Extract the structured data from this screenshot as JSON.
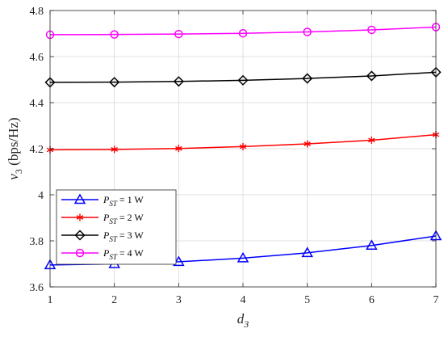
{
  "chart_data": {
    "type": "line",
    "title": "",
    "xlabel": {
      "main": "d",
      "sub": "3"
    },
    "ylabel": {
      "main": "v",
      "sub": "3",
      "rest": " (bps/Hz)"
    },
    "x": [
      1,
      2,
      3,
      4,
      5,
      6,
      7
    ],
    "xlim": [
      1,
      7
    ],
    "ylim": [
      3.6,
      4.8
    ],
    "xticks": [
      "1",
      "2",
      "3",
      "4",
      "5",
      "6",
      "7"
    ],
    "yticks": [
      "3.6",
      "3.8",
      "4",
      "4.2",
      "4.4",
      "4.6",
      "4.8"
    ],
    "grid": true,
    "legend_position": "lower-left",
    "series": [
      {
        "label_main": "P",
        "label_sub": "ST",
        "label_rest": " = 1 W",
        "color": "#0000ff",
        "marker": "triangle",
        "values": [
          3.695,
          3.7,
          3.709,
          3.725,
          3.748,
          3.78,
          3.821
        ]
      },
      {
        "label_main": "P",
        "label_sub": "ST",
        "label_rest": " = 2 W",
        "color": "#ff0000",
        "marker": "asterisk",
        "values": [
          4.195,
          4.197,
          4.201,
          4.209,
          4.221,
          4.237,
          4.261
        ]
      },
      {
        "label_main": "P",
        "label_sub": "ST",
        "label_rest": " = 3 W",
        "color": "#000000",
        "marker": "diamond",
        "values": [
          4.488,
          4.489,
          4.492,
          4.497,
          4.505,
          4.516,
          4.532
        ]
      },
      {
        "label_main": "P",
        "label_sub": "ST",
        "label_rest": " = 4 W",
        "color": "#ff00ff",
        "marker": "circle",
        "values": [
          4.695,
          4.696,
          4.698,
          4.701,
          4.707,
          4.716,
          4.728
        ]
      }
    ]
  }
}
